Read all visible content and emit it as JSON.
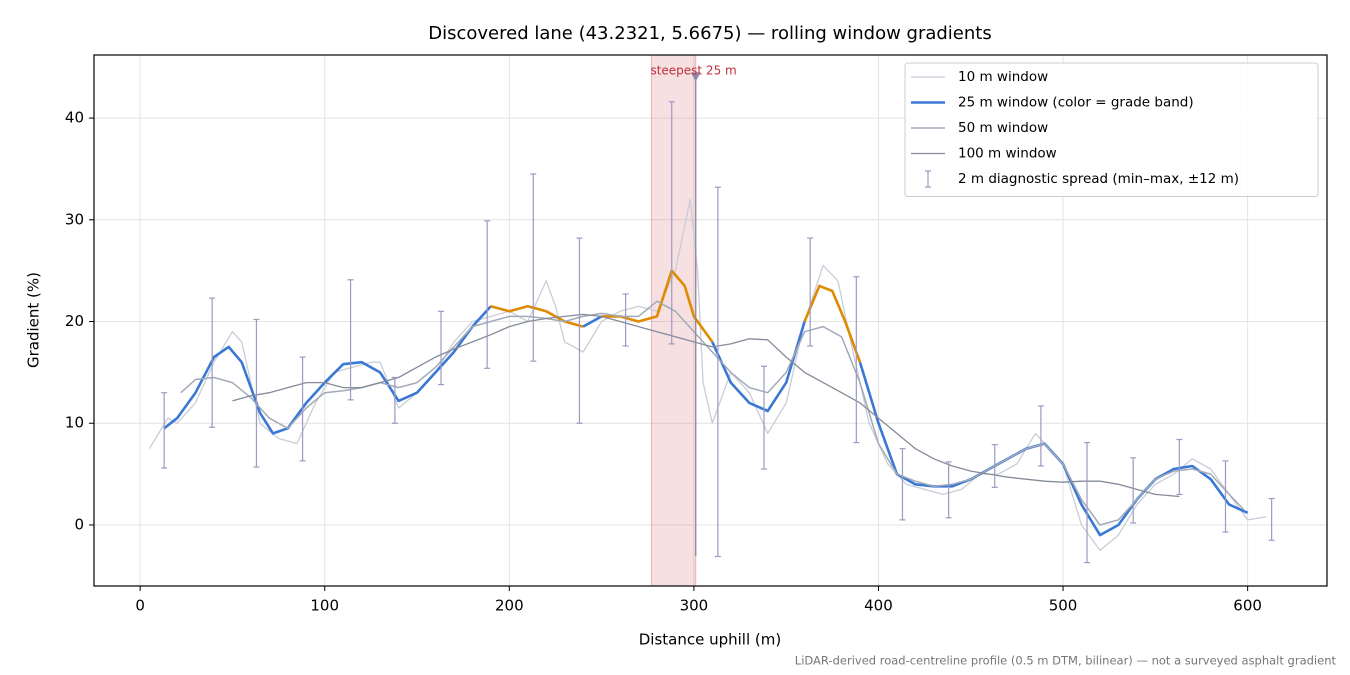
{
  "chart_data": {
    "type": "line",
    "title": "Discovered lane (43.2321, 5.6675) — rolling window gradients",
    "x_label": "Distance uphill (m)",
    "y_label": "Gradient (%)",
    "footnote": "LiDAR-derived road-centreline profile (0.5 m DTM, bilinear) — not a surveyed asphalt gradient",
    "xlim": [
      -25,
      643
    ],
    "ylim": [
      -6,
      46.2
    ],
    "xticks": [
      0,
      100,
      200,
      300,
      400,
      500,
      600
    ],
    "yticks": [
      0,
      10,
      20,
      30,
      40
    ],
    "grid": true,
    "legend": "upper right",
    "series": [
      {
        "name": "10 m window",
        "color": "#c8cdd7",
        "width": 1.3,
        "x": [
          5,
          10,
          15,
          20,
          30,
          40,
          50,
          55,
          60,
          65,
          75,
          85,
          95,
          105,
          115,
          125,
          130,
          140,
          150,
          160,
          170,
          180,
          190,
          200,
          210,
          220,
          225,
          230,
          240,
          250,
          260,
          270,
          280,
          290,
          298,
          302,
          305,
          310,
          320,
          330,
          340,
          350,
          360,
          370,
          378,
          385,
          395,
          405,
          415,
          425,
          435,
          445,
          455,
          465,
          475,
          485,
          490,
          500,
          510,
          520,
          530,
          540,
          550,
          560,
          570,
          580,
          590,
          600,
          610
        ],
        "values": [
          7.5,
          9,
          10.5,
          10,
          12,
          16,
          19,
          18,
          14,
          10,
          8.5,
          8,
          12,
          15,
          15.5,
          16,
          16,
          11.5,
          13,
          15,
          18,
          20,
          20.5,
          21,
          20,
          24,
          21.5,
          18,
          17,
          20,
          21,
          21.5,
          21,
          25,
          32,
          25,
          14,
          10,
          15,
          13,
          9,
          12,
          20,
          25.5,
          24,
          18,
          10,
          6,
          4,
          3.5,
          3,
          3.5,
          5,
          5,
          6,
          9,
          8,
          6,
          0,
          -2.5,
          -1,
          2,
          4,
          5,
          6.5,
          5.5,
          3,
          0.5,
          0.8
        ]
      },
      {
        "name": "25 m window (color = grade band)",
        "color": "#3a78d6",
        "width": 2.6,
        "x": [
          13,
          20,
          30,
          40,
          48,
          55,
          60,
          65,
          72,
          80,
          90,
          100,
          110,
          120,
          130,
          140,
          150,
          160,
          170,
          180,
          190,
          200,
          210,
          220,
          230,
          240,
          250,
          260,
          270,
          280,
          288,
          295,
          300,
          310,
          320,
          330,
          340,
          350,
          360,
          368,
          375,
          382,
          390,
          400,
          410,
          420,
          430,
          440,
          450,
          460,
          470,
          480,
          490,
          500,
          510,
          520,
          530,
          540,
          550,
          560,
          570,
          580,
          590,
          600
        ],
        "values": [
          9.5,
          10.5,
          13,
          16.5,
          17.5,
          16,
          13.5,
          11,
          9,
          9.5,
          12,
          14,
          15.8,
          16,
          15,
          12.2,
          13,
          15,
          17,
          19.5,
          21.5,
          21,
          21.5,
          21,
          20,
          19.5,
          20.5,
          20.5,
          20,
          20.5,
          25,
          23.5,
          20.5,
          18,
          14,
          12,
          11.2,
          14,
          20,
          23.5,
          23,
          20,
          16,
          10,
          5,
          4,
          3.8,
          3.8,
          4.5,
          5.5,
          6.5,
          7.5,
          8,
          6,
          2,
          -1,
          0,
          2.5,
          4.5,
          5.5,
          5.8,
          4.5,
          2,
          1.2
        ],
        "point_colors": [
          "#3a78d6",
          "#3a78d6",
          "#3a78d6",
          "#3a78d6",
          "#3a78d6",
          "#3a78d6",
          "#3a78d6",
          "#3a78d6",
          "#3a78d6",
          "#3a78d6",
          "#3a78d6",
          "#3a78d6",
          "#3a78d6",
          "#3a78d6",
          "#3a78d6",
          "#3a78d6",
          "#3a78d6",
          "#3a78d6",
          "#3a78d6",
          "#3a78d6",
          "#e08a00",
          "#e08a00",
          "#e08a00",
          "#e08a00",
          "#e08a00",
          "#3a78d6",
          "#e08a00",
          "#e08a00",
          "#e08a00",
          "#e08a00",
          "#e08a00",
          "#e08a00",
          "#e08a00",
          "#3a78d6",
          "#3a78d6",
          "#3a78d6",
          "#3a78d6",
          "#3a78d6",
          "#e08a00",
          "#e08a00",
          "#e08a00",
          "#e08a00",
          "#3a78d6",
          "#3a78d6",
          "#3a78d6",
          "#3a78d6",
          "#3a78d6",
          "#3a78d6",
          "#3a78d6",
          "#3a78d6",
          "#3a78d6",
          "#3a78d6",
          "#3a78d6",
          "#3a78d6",
          "#3a78d6",
          "#3a78d6",
          "#3a78d6",
          "#3a78d6",
          "#3a78d6",
          "#3a78d6",
          "#3a78d6",
          "#3a78d6",
          "#3a78d6",
          "#3a78d6"
        ]
      },
      {
        "name": "50 m window",
        "color": "#a2aab8",
        "width": 1.5,
        "x": [
          22,
          30,
          40,
          50,
          60,
          70,
          80,
          90,
          100,
          110,
          120,
          130,
          140,
          150,
          160,
          170,
          180,
          190,
          200,
          210,
          220,
          230,
          240,
          250,
          260,
          270,
          280,
          290,
          300,
          310,
          320,
          330,
          340,
          350,
          360,
          370,
          380,
          390,
          400,
          410,
          420,
          430,
          440,
          450,
          460,
          470,
          480,
          490,
          500,
          510,
          520,
          530,
          540,
          550,
          560,
          570,
          580,
          590,
          598
        ],
        "values": [
          13,
          14.3,
          14.5,
          14,
          12.5,
          10.5,
          9.5,
          11.5,
          13,
          13.2,
          13.5,
          14,
          13.5,
          14,
          15.5,
          17.5,
          19.5,
          20,
          20.5,
          20.5,
          20.3,
          20,
          20.5,
          20.8,
          20.5,
          20.5,
          22,
          21,
          19,
          17,
          15,
          13.5,
          13,
          15,
          19,
          19.5,
          18.5,
          14,
          8,
          5,
          4.3,
          3.8,
          4,
          4.5,
          5.5,
          6.5,
          7.5,
          8,
          6,
          2.5,
          0,
          0.5,
          2.5,
          4.5,
          5.3,
          5.5,
          5,
          3,
          1.5
        ]
      },
      {
        "name": "100 m window",
        "color": "#848b99",
        "width": 1.3,
        "x": [
          50,
          60,
          70,
          80,
          90,
          100,
          110,
          120,
          130,
          140,
          150,
          160,
          170,
          180,
          190,
          200,
          210,
          220,
          230,
          240,
          250,
          260,
          270,
          280,
          290,
          300,
          310,
          320,
          330,
          340,
          350,
          360,
          370,
          380,
          390,
          400,
          410,
          420,
          430,
          440,
          450,
          460,
          470,
          480,
          490,
          500,
          510,
          520,
          530,
          540,
          550,
          563
        ],
        "values": [
          12.2,
          12.7,
          13,
          13.5,
          14,
          14,
          13.5,
          13.5,
          14,
          14.5,
          15.5,
          16.5,
          17.3,
          18,
          18.7,
          19.5,
          20,
          20.3,
          20.5,
          20.7,
          20.5,
          20,
          19.5,
          19,
          18.5,
          18,
          17.5,
          17.8,
          18.3,
          18.2,
          16.5,
          15,
          14,
          13,
          12,
          10.5,
          9,
          7.5,
          6.5,
          5.8,
          5.3,
          5,
          4.7,
          4.5,
          4.3,
          4.2,
          4.3,
          4.3,
          4,
          3.5,
          3,
          2.8
        ]
      }
    ],
    "spread": {
      "name": "2 m diagnostic spread (min–max, ±12 m)",
      "color": "#9d99c2",
      "x": [
        13,
        39,
        63,
        88,
        114,
        138,
        163,
        188,
        213,
        238,
        263,
        288,
        313,
        338,
        363,
        388,
        413,
        438,
        463,
        488,
        513,
        538,
        563,
        588,
        613
      ],
      "low": [
        5.6,
        9.6,
        5.7,
        6.3,
        12.3,
        10,
        13.8,
        15.4,
        16.1,
        10,
        17.6,
        17.8,
        -3.1,
        5.5,
        17.6,
        8.1,
        0.5,
        0.7,
        3.7,
        5.8,
        -3.7,
        0.2,
        3,
        -0.7,
        -1.5
      ],
      "high": [
        13,
        22.3,
        20.2,
        16.5,
        24.1,
        14.5,
        21,
        29.9,
        34.5,
        28.2,
        22.7,
        41.6,
        33.2,
        15.6,
        28.2,
        24.4,
        7.5,
        6.2,
        7.9,
        11.7,
        8.1,
        6.6,
        8.4,
        6.3,
        2.6
      ]
    },
    "steepest": {
      "label": "steepest 25 m",
      "x_start": 277,
      "x_end": 301,
      "marker_y": 44,
      "color": "#c0303a"
    }
  }
}
